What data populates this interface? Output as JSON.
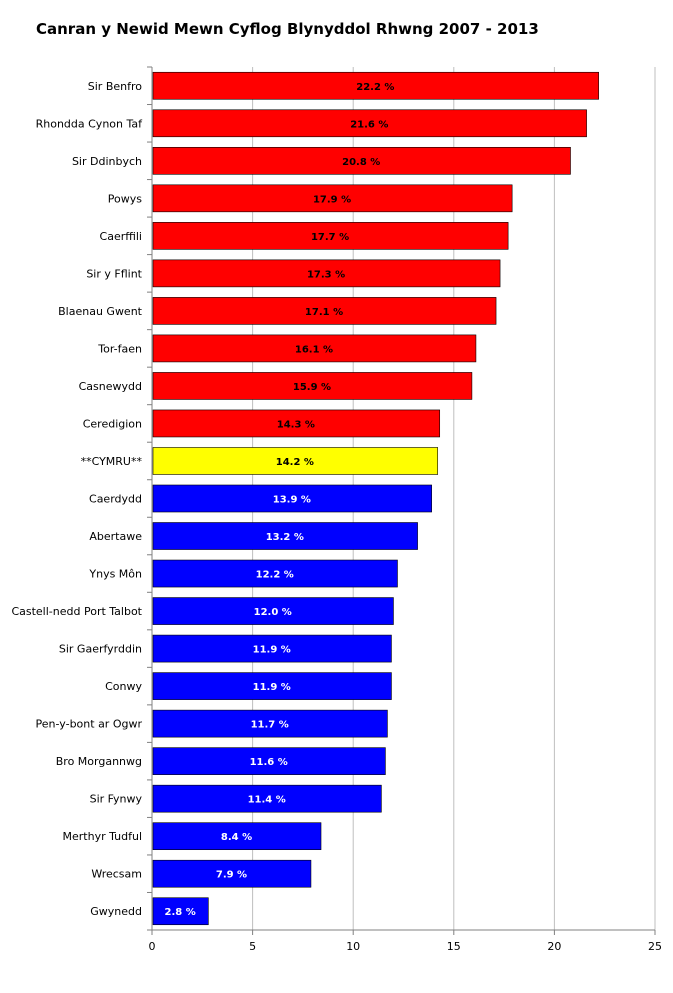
{
  "chart_data": {
    "type": "bar",
    "orientation": "horizontal",
    "title": "Canran y Newid Mewn Cyflog Blynyddol Rhwng 2007 - 2013",
    "xlabel": "",
    "ylabel": "",
    "xlim": [
      0,
      25
    ],
    "xticks": [
      0,
      5,
      10,
      15,
      20,
      25
    ],
    "grid": "vertical",
    "legend": "none",
    "colors": {
      "above": "#ff0000",
      "wales": "#ffff00",
      "below": "#0000ff"
    },
    "categories": [
      "Sir Benfro",
      "Rhondda Cynon Taf",
      "Sir Ddinbych",
      "Powys",
      "Caerffili",
      "Sir y Fflint",
      "Blaenau Gwent",
      "Tor-faen",
      "Casnewydd",
      "Ceredigion",
      "**CYMRU**",
      "Caerdydd",
      "Abertawe",
      "Ynys Môn",
      "Castell-nedd Port Talbot",
      "Sir Gaerfyrddin",
      "Conwy",
      "Pen-y-bont ar Ogwr",
      "Bro Morgannwg",
      "Sir Fynwy",
      "Merthyr Tudful",
      "Wrecsam",
      "Gwynedd"
    ],
    "values": [
      22.2,
      21.6,
      20.8,
      17.9,
      17.7,
      17.3,
      17.1,
      16.1,
      15.9,
      14.3,
      14.2,
      13.9,
      13.2,
      12.2,
      12.0,
      11.9,
      11.9,
      11.7,
      11.6,
      11.4,
      8.4,
      7.9,
      2.8
    ],
    "value_labels": [
      "22.2 %",
      "21.6 %",
      "20.8 %",
      "17.9 %",
      "17.7 %",
      "17.3 %",
      "17.1 %",
      "16.1 %",
      "15.9 %",
      "14.3 %",
      "14.2 %",
      "13.9 %",
      "13.2 %",
      "12.2 %",
      "12.0 %",
      "11.9 %",
      "11.9 %",
      "11.7 %",
      "11.6 %",
      "11.4 %",
      "8.4 %",
      "7.9 %",
      "2.8 %"
    ],
    "bar_color_groups": [
      "above",
      "above",
      "above",
      "above",
      "above",
      "above",
      "above",
      "above",
      "above",
      "above",
      "wales",
      "below",
      "below",
      "below",
      "below",
      "below",
      "below",
      "below",
      "below",
      "below",
      "below",
      "below",
      "below"
    ]
  }
}
